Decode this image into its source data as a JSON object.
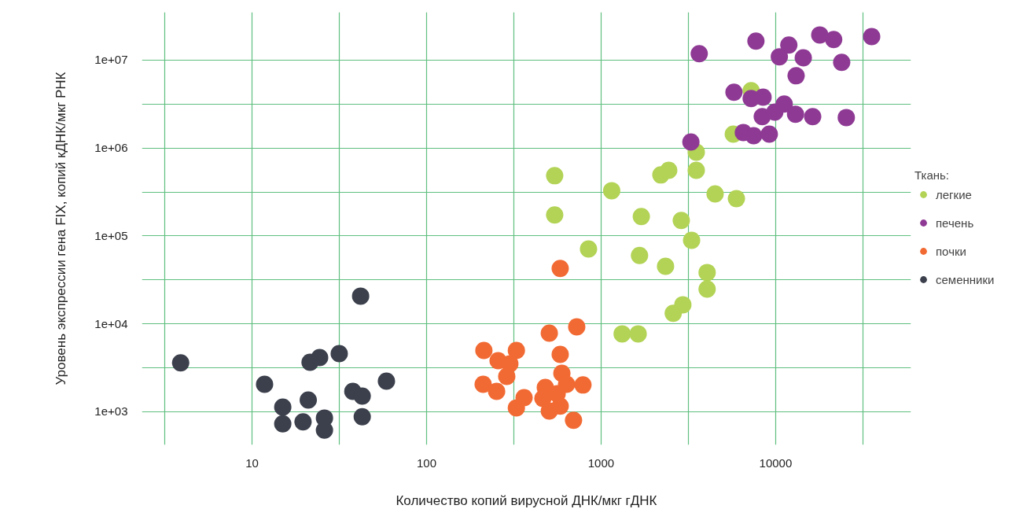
{
  "chart_data": {
    "type": "scatter",
    "xlabel": "Количество копий вирусной ДНК/мкг гДНК",
    "ylabel": "Уровень экспрессии гена FIX, копий кДНК/мкг РНК",
    "legend_title": "Ткань:",
    "log": "xy",
    "grid": true,
    "legend": "right",
    "marker": "circle",
    "xlim": [
      2.34,
      59600
    ],
    "ylim": [
      421,
      35000000
    ],
    "xticks": [
      {
        "value": 3.162,
        "label": null
      },
      10,
      {
        "value": 31.62,
        "label": null
      },
      100,
      {
        "value": 316.2,
        "label": null
      },
      1000,
      {
        "value": 3162,
        "label": null
      },
      10000,
      {
        "value": 31623,
        "label": null
      }
    ],
    "yticks": [
      {
        "value": 1000,
        "label": "1e+03"
      },
      {
        "value": 3162,
        "label": null
      },
      {
        "value": 10000,
        "label": "1e+04"
      },
      {
        "value": 31623,
        "label": null
      },
      {
        "value": 100000,
        "label": "1e+05"
      },
      {
        "value": 316228,
        "label": null
      },
      {
        "value": 1000000,
        "label": "1e+06"
      },
      {
        "value": 3162278,
        "label": null
      },
      {
        "value": 10000000,
        "label": "1e+07"
      }
    ],
    "series": [
      {
        "name": "легкие",
        "color": "#b2d355",
        "x": [
          542,
          542,
          847,
          1150,
          1700,
          1660,
          1320,
          1630,
          2200,
          2440,
          2340,
          2880,
          3300,
          2590,
          2940,
          3510,
          3510,
          4500,
          4050,
          4050,
          5960,
          5720,
          7240
        ],
        "values": [
          484000,
          173000,
          71000,
          327000,
          166000,
          60000,
          7700,
          7700,
          494000,
          558000,
          45200,
          150000,
          89300,
          13200,
          16500,
          897000,
          558000,
          301000,
          38400,
          24900,
          266000,
          1440000,
          4480000
        ]
      },
      {
        "name": "печень",
        "color": "#8e3a94",
        "x": [
          3650,
          3270,
          7710,
          5770,
          7240,
          8470,
          6530,
          7480,
          9200,
          8380,
          9890,
          11200,
          10500,
          11900,
          13100,
          13000,
          14400,
          16300,
          17900,
          21500,
          23900,
          25400,
          35500
        ],
        "values": [
          11800000,
          1170000,
          16400000,
          4300000,
          3650000,
          3790000,
          1500000,
          1380000,
          1440000,
          2270000,
          2560000,
          3160000,
          10900000,
          14800000,
          6620000,
          2420000,
          10600000,
          2270000,
          19300000,
          17100000,
          9400000,
          2220000,
          18500000
        ]
      },
      {
        "name": "почки",
        "color": "#f26a33",
        "x": [
          213,
          211,
          252,
          257,
          300,
          288,
          327,
          327,
          362,
          505,
          479,
          464,
          505,
          583,
          583,
          596,
          583,
          634,
          695,
          725,
          787,
          560
        ],
        "values": [
          4990,
          2060,
          1710,
          3820,
          3520,
          2530,
          4990,
          1110,
          1450,
          7850,
          1890,
          1420,
          1020,
          42600,
          4500,
          2740,
          1160,
          2060,
          800,
          9240,
          2020,
          1610
        ]
      },
      {
        "name": "семенники",
        "color": "#3b404c",
        "x": [
          3.9,
          11.8,
          15,
          15,
          19.6,
          21,
          21.5,
          24.4,
          26,
          26,
          31.6,
          37.8,
          42.8,
          42.8,
          41.9,
          58.9
        ],
        "values": [
          3600,
          2060,
          1130,
          730,
          770,
          1360,
          3660,
          4140,
          850,
          620,
          4590,
          1710,
          1510,
          880,
          20700,
          2230
        ]
      }
    ]
  }
}
